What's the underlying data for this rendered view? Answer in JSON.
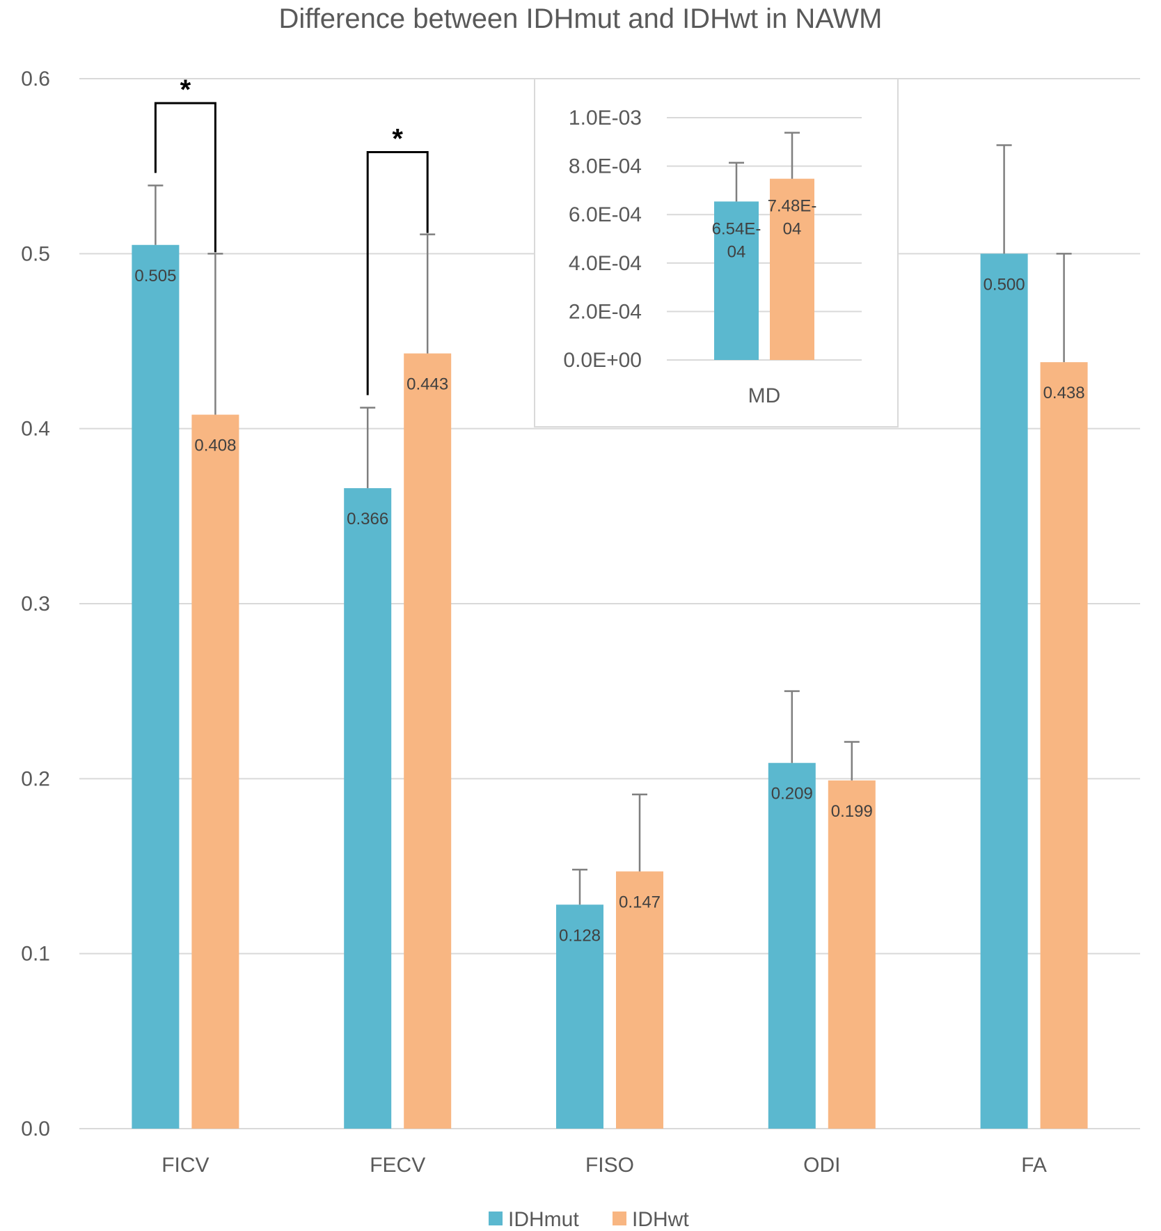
{
  "chart_data": [
    {
      "type": "bar",
      "title": "Difference between IDHmut and IDHwt in NAWM",
      "categories": [
        "FICV",
        "FECV",
        "FISO",
        "ODI",
        "FA"
      ],
      "series": [
        {
          "name": "IDHmut",
          "color": "#5bb8cf",
          "values": [
            0.505,
            0.366,
            0.128,
            0.209,
            0.5
          ],
          "errors": [
            0.034,
            0.046,
            0.02,
            0.041,
            0.062
          ]
        },
        {
          "name": "IDHwt",
          "color": "#f8b682",
          "values": [
            0.408,
            0.443,
            0.147,
            0.199,
            0.438
          ],
          "errors": [
            0.092,
            0.068,
            0.044,
            0.022,
            0.062
          ]
        }
      ],
      "data_labels": [
        [
          "0.505",
          "0.366",
          "0.128",
          "0.209",
          "0.500"
        ],
        [
          "0.408",
          "0.443",
          "0.147",
          "0.199",
          "0.438"
        ]
      ],
      "yticks": [
        "0.0",
        "0.1",
        "0.2",
        "0.3",
        "0.4",
        "0.5",
        "0.6"
      ],
      "ylim": [
        0,
        0.6
      ],
      "grid": true,
      "legend": "bottom",
      "significance": [
        {
          "category": "FICV",
          "label": "*"
        },
        {
          "category": "FECV",
          "label": "*"
        }
      ]
    },
    {
      "type": "bar",
      "inset": "top-center",
      "categories": [
        "MD"
      ],
      "series": [
        {
          "name": "IDHmut",
          "color": "#5bb8cf",
          "values": [
            0.000654
          ],
          "errors": [
            0.00016
          ]
        },
        {
          "name": "IDHwt",
          "color": "#f8b682",
          "values": [
            0.000748
          ],
          "errors": [
            0.00019
          ]
        }
      ],
      "data_labels": [
        [
          "6.54E-\n04"
        ],
        [
          "7.48E-\n04"
        ]
      ],
      "yticks": [
        "0.0E+00",
        "2.0E-04",
        "4.0E-04",
        "6.0E-04",
        "8.0E-04",
        "1.0E-03"
      ],
      "ylim": [
        0,
        0.001
      ],
      "grid": true
    }
  ]
}
